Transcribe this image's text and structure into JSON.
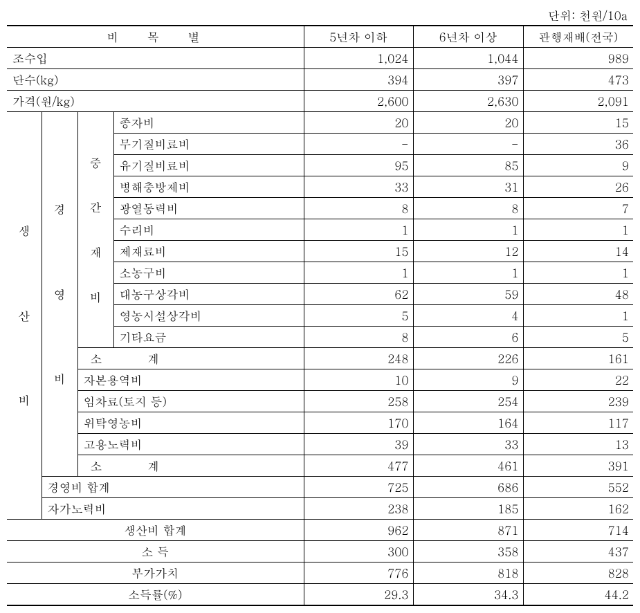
{
  "unit_label": "단위: 천원/10a",
  "header": {
    "category": "비 목 별",
    "col1": "5년차 이하",
    "col2": "6년차 이상",
    "col3": "관행재배(전국)"
  },
  "rows_top": [
    {
      "label": "조수입",
      "v1": "1,024",
      "v2": "1,044",
      "v3": "989"
    },
    {
      "label": "단수(kg)",
      "v1": "394",
      "v2": "397",
      "v3": "473"
    },
    {
      "label": "가격(원/kg)",
      "v1": "2,600",
      "v2": "2,630",
      "v3": "2,091"
    }
  ],
  "big_label_1": "생산비",
  "big_label_2": "경영비",
  "mid_label": "중간재비",
  "mid_rows": [
    {
      "label": "종자비",
      "v1": "20",
      "v2": "20",
      "v3": "15"
    },
    {
      "label": "무기질비료비",
      "v1": "-",
      "v2": "-",
      "v3": "36"
    },
    {
      "label": "유기질비료비",
      "v1": "95",
      "v2": "85",
      "v3": "9"
    },
    {
      "label": "병해충방제비",
      "v1": "33",
      "v2": "31",
      "v3": "26"
    },
    {
      "label": "광열동력비",
      "v1": "8",
      "v2": "8",
      "v3": "7"
    },
    {
      "label": "수리비",
      "v1": "1",
      "v2": "1",
      "v3": "1"
    },
    {
      "label": "제재료비",
      "v1": "15",
      "v2": "12",
      "v3": "14"
    },
    {
      "label": "소농구비",
      "v1": "1",
      "v2": "1",
      "v3": "1"
    },
    {
      "label": "대농구상각비",
      "v1": "62",
      "v2": "59",
      "v3": "48"
    },
    {
      "label": "영농시설상각비",
      "v1": "5",
      "v2": "4",
      "v3": "1"
    },
    {
      "label": "기타요금",
      "v1": "8",
      "v2": "6",
      "v3": "5"
    }
  ],
  "gy_rows": [
    {
      "label": "소      계",
      "v1": "248",
      "v2": "226",
      "v3": "161"
    },
    {
      "label": "자본용역비",
      "v1": "10",
      "v2": "9",
      "v3": "22"
    },
    {
      "label": "임차료(토지 등)",
      "v1": "258",
      "v2": "254",
      "v3": "239"
    },
    {
      "label": "위탁영농비",
      "v1": "170",
      "v2": "164",
      "v3": "117"
    },
    {
      "label": "고용노력비",
      "v1": "39",
      "v2": "33",
      "v3": "13"
    },
    {
      "label": "소      계",
      "v1": "477",
      "v2": "461",
      "v3": "391"
    }
  ],
  "prod_rows": [
    {
      "label": "경영비 합계",
      "v1": "725",
      "v2": "686",
      "v3": "552"
    },
    {
      "label": "자가노력비",
      "v1": "238",
      "v2": "185",
      "v3": "162"
    }
  ],
  "bottom_rows": [
    {
      "label": "생산비 합계",
      "v1": "962",
      "v2": "871",
      "v3": "714"
    },
    {
      "label": "소  득",
      "v1": "300",
      "v2": "358",
      "v3": "437"
    },
    {
      "label": "부가가치",
      "v1": "776",
      "v2": "818",
      "v3": "828"
    },
    {
      "label": "소득률(%)",
      "v1": "29.3",
      "v2": "34.3",
      "v3": "44.2"
    }
  ]
}
